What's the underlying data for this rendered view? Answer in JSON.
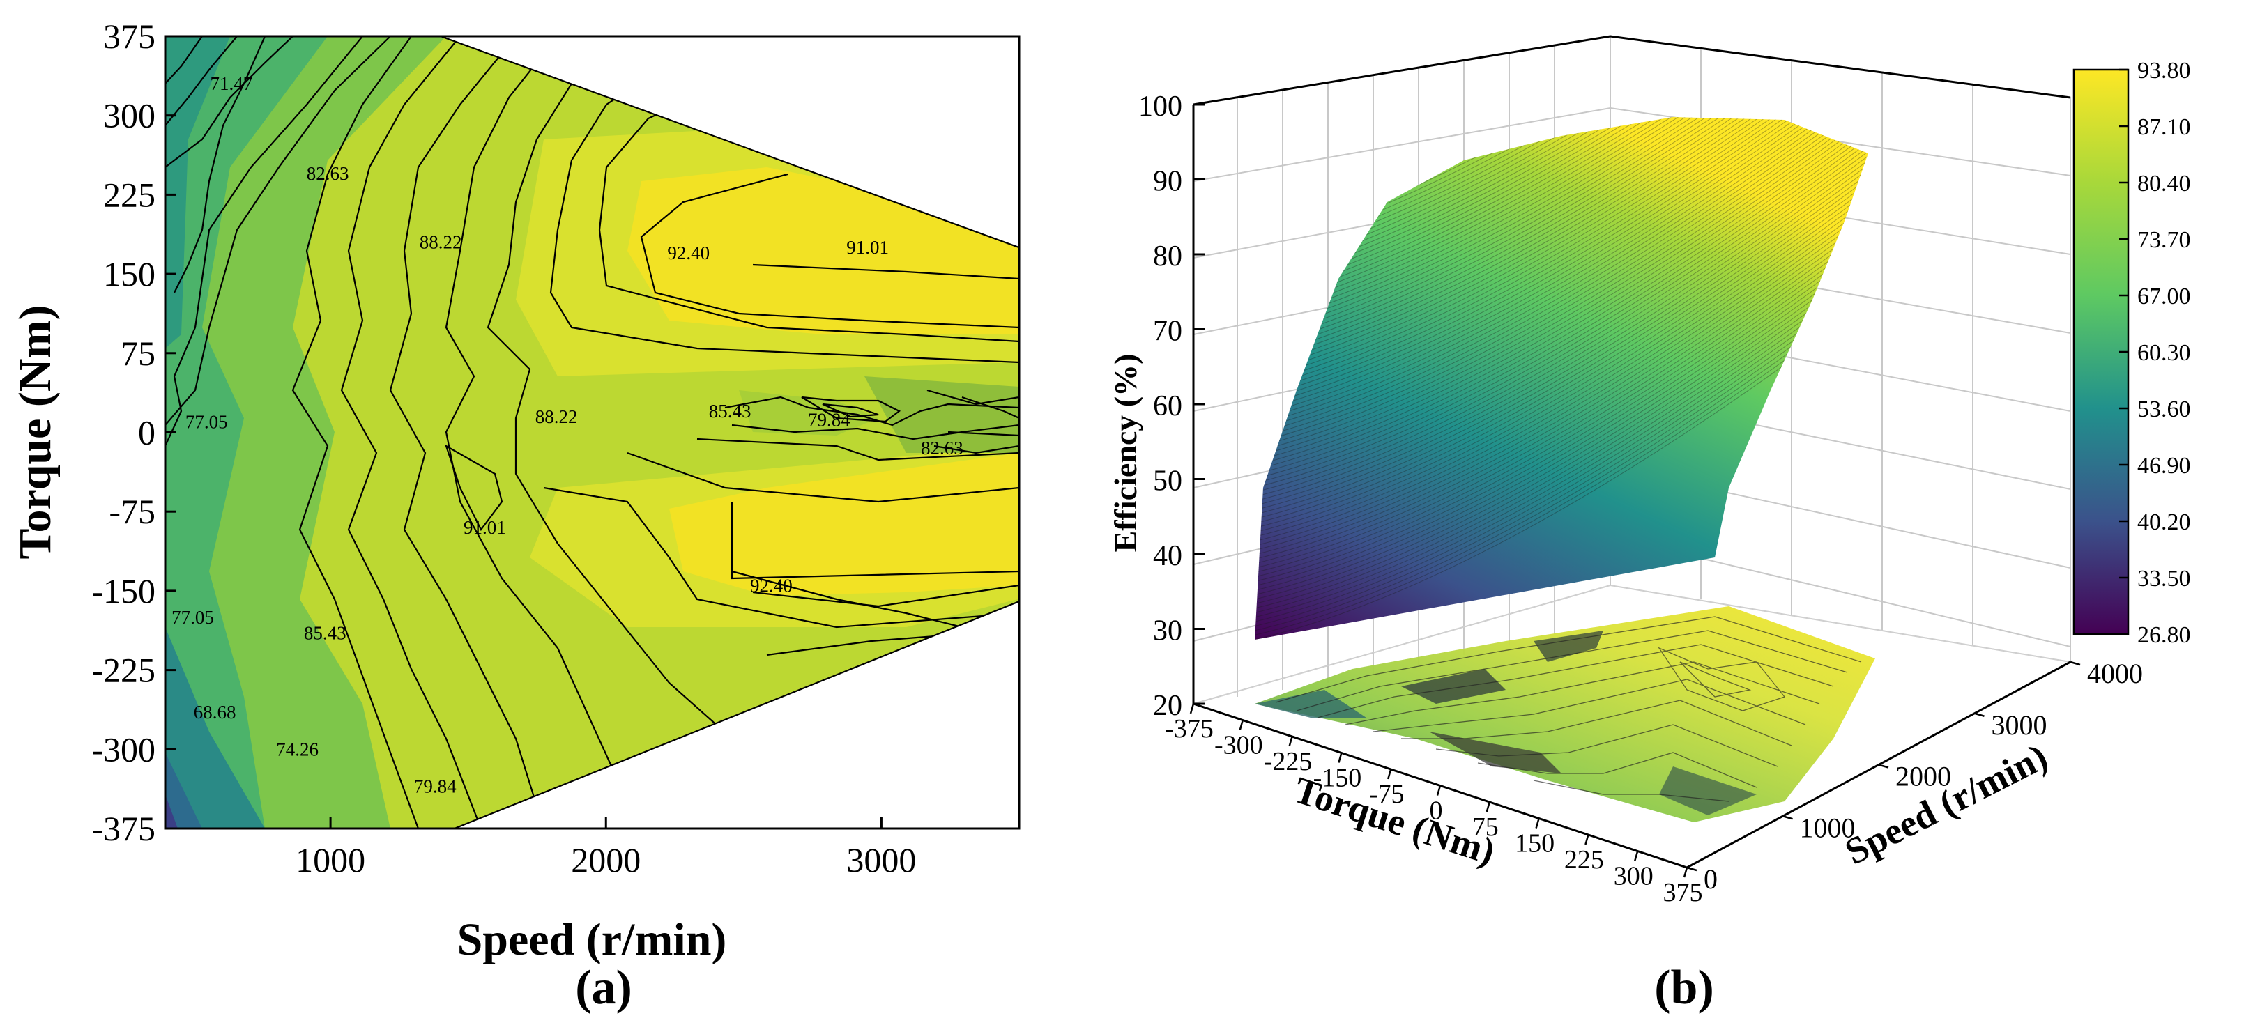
{
  "chart_data": [
    {
      "panel": "(a)",
      "type": "contour",
      "xlabel": "Speed (r/min)",
      "ylabel": "Torque (Nm)",
      "xlim": [
        400,
        3500
      ],
      "ylim": [
        -375,
        375
      ],
      "xticks": [
        1000,
        2000,
        3000
      ],
      "yticks": [
        375,
        300,
        225,
        150,
        75,
        0,
        -75,
        -150,
        -225,
        -300,
        -375
      ],
      "boundary": [
        [
          400,
          375
        ],
        [
          1400,
          375
        ],
        [
          3500,
          175
        ],
        [
          3500,
          -160
        ],
        [
          1450,
          -375
        ],
        [
          400,
          -375
        ]
      ],
      "contour_labels": [
        {
          "text": "71.47",
          "x": 640,
          "y": 330
        },
        {
          "text": "82.63",
          "x": 990,
          "y": 245
        },
        {
          "text": "88.22",
          "x": 1400,
          "y": 180
        },
        {
          "text": "92.40",
          "x": 2300,
          "y": 170
        },
        {
          "text": "91.01",
          "x": 2950,
          "y": 175
        },
        {
          "text": "77.05",
          "x": 550,
          "y": 10
        },
        {
          "text": "88.22",
          "x": 1820,
          "y": 15
        },
        {
          "text": "85.43",
          "x": 2450,
          "y": 20
        },
        {
          "text": "79.84",
          "x": 2810,
          "y": 12
        },
        {
          "text": "82.63",
          "x": 3220,
          "y": -15
        },
        {
          "text": "91.01",
          "x": 1560,
          "y": -90
        },
        {
          "text": "92.40",
          "x": 2600,
          "y": -145
        },
        {
          "text": "77.05",
          "x": 500,
          "y": -175
        },
        {
          "text": "85.43",
          "x": 980,
          "y": -190
        },
        {
          "text": "68.68",
          "x": 580,
          "y": -265
        },
        {
          "text": "74.26",
          "x": 880,
          "y": -300
        },
        {
          "text": "79.84",
          "x": 1380,
          "y": -335
        }
      ]
    },
    {
      "panel": "(b)",
      "type": "surface3d",
      "xlabel": "Torque (Nm)",
      "ylabel": "Speed (r/min)",
      "zlabel": "Efficiency (%)",
      "zlim": [
        20,
        100
      ],
      "ylim": [
        0,
        4000
      ],
      "xticks": [
        "-375",
        "-300",
        "-225",
        "-150",
        "-75",
        "0",
        "75",
        "150",
        "225",
        "300",
        "375"
      ],
      "yticks": [
        "0",
        "1000",
        "2000",
        "3000",
        "4000"
      ],
      "zticks": [
        "20",
        "30",
        "40",
        "50",
        "60",
        "70",
        "80",
        "90",
        "100"
      ],
      "colorbar": {
        "min": 26.8,
        "max": 93.8,
        "ticks": [
          "93.80",
          "87.10",
          "80.40",
          "73.70",
          "67.00",
          "60.30",
          "53.60",
          "46.90",
          "40.20",
          "33.50",
          "26.80"
        ]
      }
    }
  ],
  "colors": {
    "viridis": [
      "#440154",
      "#3b528b",
      "#21918c",
      "#5ec962",
      "#a8d83a",
      "#fde725"
    ]
  }
}
